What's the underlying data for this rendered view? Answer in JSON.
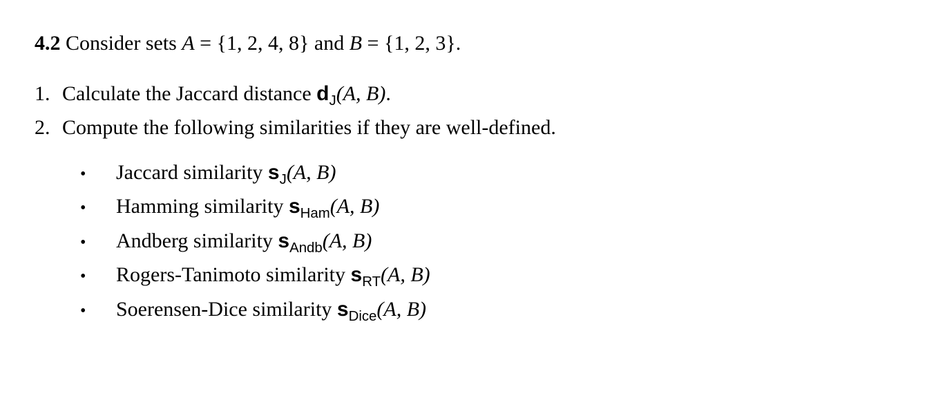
{
  "heading": {
    "number": "4.2",
    "prefix": "Consider sets ",
    "setA_label": "A",
    "setA_value": "{1, 2, 4, 8}",
    "connector": " and ",
    "setB_label": "B",
    "setB_value": "{1, 2, 3}",
    "period": "."
  },
  "numbered": [
    {
      "num": "1.",
      "before": "Calculate the Jaccard distance ",
      "sym": "d",
      "sub": "J",
      "args": "(A, B)",
      "after": "."
    },
    {
      "num": "2.",
      "before": "Compute the following similarities if they are well-defined.",
      "sym": "",
      "sub": "",
      "args": "",
      "after": ""
    }
  ],
  "bullets": [
    {
      "before": "Jaccard similarity ",
      "sym": "s",
      "sub": "J",
      "args": "(A, B)"
    },
    {
      "before": "Hamming similarity ",
      "sym": "s",
      "sub": "Ham",
      "args": "(A, B)"
    },
    {
      "before": "Andberg similarity ",
      "sym": "s",
      "sub": "Andb",
      "args": "(A, B)"
    },
    {
      "before": "Rogers-Tanimoto similarity ",
      "sym": "s",
      "sub": "RT",
      "args": "(A, B)"
    },
    {
      "before": "Soerensen-Dice similarity ",
      "sym": "s",
      "sub": "Dice",
      "args": "(A, B)"
    }
  ],
  "bullet_char": "•",
  "equals": " = "
}
